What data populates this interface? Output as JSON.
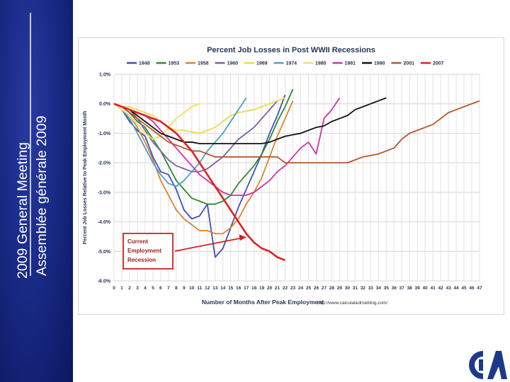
{
  "sidebar": {
    "line1": "2009 General Meeting",
    "line2": "Assemblée générale 2009"
  },
  "chart_data": {
    "type": "line",
    "title": "Percent Job Losses in Post WWII Recessions",
    "xlabel": "Number of Months After Peak Employment",
    "ylabel": "Percent Job Losses Relative to Peak Employment Month",
    "xlim": [
      0,
      47
    ],
    "ylim": [
      -6.0,
      1.0
    ],
    "xticks": [
      0,
      1,
      2,
      3,
      4,
      5,
      6,
      7,
      8,
      9,
      10,
      11,
      12,
      13,
      14,
      15,
      16,
      17,
      18,
      19,
      20,
      21,
      22,
      23,
      24,
      25,
      26,
      27,
      28,
      29,
      30,
      31,
      32,
      33,
      34,
      35,
      36,
      37,
      38,
      39,
      40,
      41,
      42,
      43,
      44,
      45,
      46,
      47
    ],
    "yticks": [
      1.0,
      0.0,
      -1.0,
      -2.0,
      -3.0,
      -4.0,
      -5.0,
      -6.0
    ],
    "ytick_labels": [
      "1.0%",
      "0.0%",
      "-1.0%",
      "-2.0%",
      "-3.0%",
      "-4.0%",
      "-5.0%",
      "-6.0%"
    ],
    "grid": true,
    "legend_position": "top",
    "source": "http://www.calculatedriskblog.com/",
    "annotation": {
      "lines": [
        "Current",
        "Employment",
        "Recession"
      ],
      "points_to": {
        "x": 17,
        "y": -4.5
      }
    },
    "series": [
      {
        "name": "1948",
        "color": "#3f4fbf",
        "values": [
          0,
          -0.2,
          -0.6,
          -0.9,
          -1.1,
          -1.8,
          -2.3,
          -2.4,
          -2.9,
          -3.6,
          -3.9,
          -3.8,
          -3.4,
          -5.2,
          -4.9,
          -4.2,
          -3.5,
          -2.9,
          -2.3,
          -1.7,
          -1.0,
          -0.4,
          0.3
        ]
      },
      {
        "name": "1953",
        "color": "#2b8a2b",
        "values": [
          0,
          -0.1,
          -0.3,
          -0.6,
          -0.8,
          -1.2,
          -1.6,
          -2.1,
          -2.6,
          -2.9,
          -3.2,
          -3.3,
          -3.4,
          -3.4,
          -3.3,
          -3.1,
          -2.7,
          -2.4,
          -2.1,
          -1.7,
          -1.2,
          -0.6,
          -0.1,
          0.5
        ]
      },
      {
        "name": "1958",
        "color": "#e0832a",
        "values": [
          0,
          -0.2,
          -0.4,
          -0.8,
          -1.3,
          -1.9,
          -2.6,
          -3.1,
          -3.6,
          -3.9,
          -4.1,
          -4.3,
          -4.3,
          -4.4,
          -4.4,
          -4.2,
          -3.9,
          -3.4,
          -3.0,
          -2.5,
          -1.8,
          -1.1,
          -0.5,
          0.1
        ]
      },
      {
        "name": "1960",
        "color": "#7d5ea8",
        "values": [
          0,
          -0.1,
          -0.2,
          -0.5,
          -0.9,
          -1.3,
          -1.6,
          -1.9,
          -2.1,
          -2.2,
          -2.3,
          -2.3,
          -2.2,
          -2.0,
          -1.8,
          -1.5,
          -1.2,
          -1.0,
          -0.8,
          -0.5,
          -0.2,
          0.1
        ]
      },
      {
        "name": "1969",
        "color": "#f0d84a",
        "values": [
          0,
          -0.1,
          -0.1,
          -0.2,
          -0.3,
          -0.4,
          -0.6,
          -0.8,
          -0.9,
          -0.9,
          -0.95,
          -1.0,
          -0.9,
          -0.8,
          -0.6,
          -0.4,
          -0.3,
          -0.25,
          -0.2,
          -0.1,
          0.0,
          0.1,
          0.2
        ]
      },
      {
        "name": "1974",
        "color": "#4a9fc8",
        "values": [
          0,
          -0.2,
          -0.5,
          -1.0,
          -1.5,
          -2.0,
          -2.4,
          -2.7,
          -2.8,
          -2.6,
          -2.3,
          -2.0,
          -1.6,
          -1.3,
          -1.0,
          -0.6,
          -0.2,
          0.2
        ]
      },
      {
        "name": "1980",
        "color": "#f0e060",
        "values": [
          0,
          -0.2,
          -0.4,
          -0.7,
          -1.0,
          -1.2,
          -1.1,
          -0.8,
          -0.5,
          -0.3,
          -0.1,
          0.0
        ]
      },
      {
        "name": "1981",
        "color": "#cc33aa",
        "values": [
          0,
          -0.1,
          -0.2,
          -0.3,
          -0.4,
          -0.6,
          -0.9,
          -1.2,
          -1.5,
          -1.8,
          -2.1,
          -2.4,
          -2.6,
          -2.8,
          -3.0,
          -3.1,
          -3.1,
          -3.1,
          -3.0,
          -2.8,
          -2.6,
          -2.3,
          -2.1,
          -1.8,
          -1.5,
          -1.3,
          -1.7,
          -0.5,
          -0.2,
          0.2
        ]
      },
      {
        "name": "1990",
        "color": "#111111",
        "values": [
          0,
          -0.1,
          -0.2,
          -0.4,
          -0.6,
          -0.8,
          -1.0,
          -1.1,
          -1.2,
          -1.3,
          -1.3,
          -1.35,
          -1.35,
          -1.35,
          -1.35,
          -1.35,
          -1.35,
          -1.35,
          -1.35,
          -1.35,
          -1.3,
          -1.2,
          -1.1,
          -1.05,
          -1.0,
          -0.9,
          -0.8,
          -0.75,
          -0.6,
          -0.5,
          -0.4,
          -0.2,
          -0.1,
          0.0,
          0.1,
          0.2
        ]
      },
      {
        "name": "2001",
        "color": "#b5562a",
        "values": [
          0,
          -0.1,
          -0.3,
          -0.5,
          -0.7,
          -0.9,
          -1.1,
          -1.3,
          -1.4,
          -1.5,
          -1.6,
          -1.6,
          -1.7,
          -1.8,
          -1.8,
          -1.8,
          -1.8,
          -1.8,
          -1.8,
          -1.8,
          -1.8,
          -1.8,
          -2.0,
          -2.0,
          -2.0,
          -2.0,
          -2.0,
          -2.0,
          -2.0,
          -2.0,
          -2.0,
          -1.9,
          -1.8,
          -1.75,
          -1.7,
          -1.6,
          -1.5,
          -1.2,
          -1.0,
          -0.9,
          -0.8,
          -0.7,
          -0.5,
          -0.3,
          -0.2,
          -0.1,
          0.0,
          0.1
        ]
      },
      {
        "name": "2007",
        "color": "#e02020",
        "values": [
          0,
          -0.1,
          -0.2,
          -0.3,
          -0.4,
          -0.5,
          -0.6,
          -0.8,
          -1.0,
          -1.3,
          -1.6,
          -2.0,
          -2.4,
          -2.8,
          -3.2,
          -3.6,
          -4.0,
          -4.4,
          -4.7,
          -4.9,
          -5.0,
          -5.2,
          -5.3
        ]
      }
    ]
  }
}
